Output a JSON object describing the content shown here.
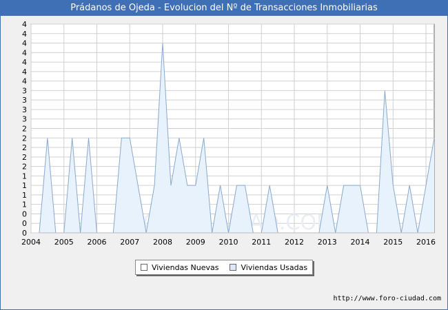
{
  "title": "Prádanos de Ojeda - Evolucion del Nº de Transacciones Inmobiliarias",
  "footer_url": "http://www.foro-ciudad.com",
  "watermark": "FORO-CIUDAD.COM",
  "colors": {
    "header": "#3f6fb5",
    "usadas_fill": "#e8f2fc",
    "usadas_line": "#8aa9cf",
    "nuevas_fill": "#ffffff",
    "grid": "#d0d0d0"
  },
  "legend": [
    {
      "label": "Viviendas Nuevas",
      "swatch": "#ffffff"
    },
    {
      "label": "Viviendas Usadas",
      "swatch": "#dbe9f8"
    }
  ],
  "chart_data": {
    "type": "area",
    "title": "Prádanos de Ojeda - Evolucion del Nº de Transacciones Inmobiliarias",
    "xlim": [
      2004,
      2016.25
    ],
    "ylim": [
      0,
      4.4
    ],
    "x_ticks": [
      2004,
      2005,
      2006,
      2007,
      2008,
      2009,
      2010,
      2011,
      2012,
      2013,
      2014,
      2015,
      2016
    ],
    "y_tick_labels": [
      "0",
      "0",
      "0",
      "1",
      "1",
      "1",
      "1",
      "2",
      "2",
      "2",
      "2",
      "2",
      "3",
      "3",
      "3",
      "3",
      "4",
      "4",
      "4",
      "4",
      "4",
      "4",
      "4"
    ],
    "grid": true,
    "series": [
      {
        "name": "Viviendas Usadas",
        "x": [
          2004.25,
          2004.5,
          2004.75,
          2005.0,
          2005.25,
          2005.5,
          2005.75,
          2006.0,
          2006.25,
          2006.5,
          2006.75,
          2007.0,
          2007.25,
          2007.5,
          2007.75,
          2008.0,
          2008.25,
          2008.5,
          2008.75,
          2009.0,
          2009.25,
          2009.5,
          2009.75,
          2010.0,
          2010.25,
          2010.5,
          2010.75,
          2011.0,
          2011.25,
          2011.5,
          2011.75,
          2012.0,
          2012.25,
          2012.5,
          2012.75,
          2013.0,
          2013.25,
          2013.5,
          2013.75,
          2014.0,
          2014.25,
          2014.5,
          2014.75,
          2015.0,
          2015.25,
          2015.5,
          2015.75,
          2016.0,
          2016.25
        ],
        "values": [
          0,
          2,
          0,
          0,
          2,
          0,
          2,
          0,
          0,
          0,
          2,
          2,
          1,
          0,
          1,
          4,
          1,
          2,
          1,
          1,
          2,
          0,
          1,
          0,
          1,
          1,
          0,
          0,
          1,
          0,
          0,
          0,
          0,
          0,
          0,
          1,
          0,
          1,
          1,
          1,
          0,
          0,
          3,
          1,
          0,
          1,
          0,
          1,
          2
        ]
      },
      {
        "name": "Viviendas Nuevas",
        "x": [
          2004.25,
          2016.25
        ],
        "values": [
          0,
          0
        ]
      }
    ]
  }
}
